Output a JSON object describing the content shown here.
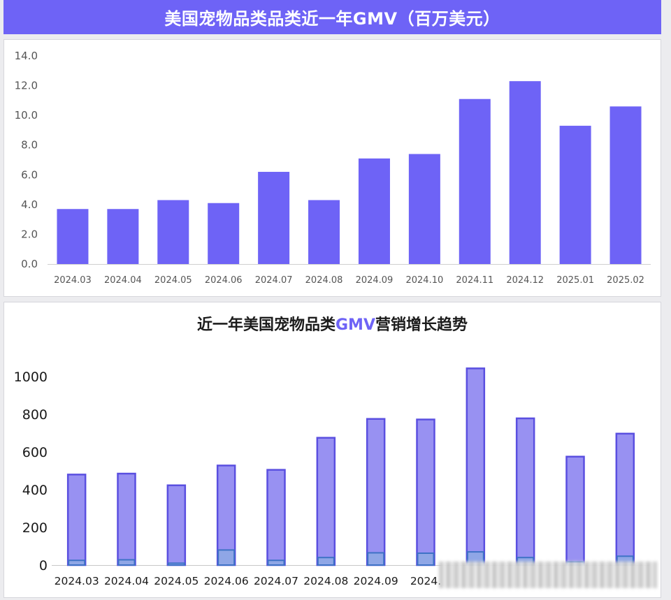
{
  "banner": {
    "title": "美国宠物品类品类近一年GMV（百万美元）"
  },
  "chart2_title": {
    "before": "近一年美国宠物品类",
    "highlight": "GMV",
    "after": "营销增长趋势"
  },
  "colors": {
    "bar1": "#6e63f6",
    "bar2_fill": "#9891f2",
    "bar2_stroke": "#5a4fe0",
    "bar2_inner_fill": "#8fa6e6",
    "bar2_inner_stroke": "#3e72c6"
  },
  "chart_data": [
    {
      "type": "bar",
      "title": "美国宠物品类品类近一年GMV（百万美元）",
      "categories": [
        "2024.03",
        "2024.04",
        "2024.05",
        "2024.06",
        "2024.07",
        "2024.08",
        "2024.09",
        "2024.10",
        "2024.11",
        "2024.12",
        "2025.01",
        "2025.02"
      ],
      "values": [
        3.7,
        3.7,
        4.3,
        4.1,
        6.2,
        4.3,
        7.1,
        7.4,
        11.1,
        12.3,
        9.3,
        10.6
      ],
      "yticks": [
        "0.0",
        "2.0",
        "4.0",
        "6.0",
        "8.0",
        "10.0",
        "12.0",
        "14.0"
      ],
      "ylim": [
        0,
        14
      ],
      "grid": false
    },
    {
      "type": "bar",
      "title": "近一年美国宠物品类GMV营销增长趋势",
      "categories": [
        "2024.03",
        "2024.04",
        "2024.05",
        "2024.06",
        "2024.07",
        "2024.08",
        "2024.09",
        "2024.",
        "",
        "",
        "",
        ""
      ],
      "series": [
        {
          "values": [
            480,
            485,
            423,
            528,
            505,
            675,
            775,
            772,
            1043,
            778,
            575,
            697
          ]
        },
        {
          "values": [
            25,
            28,
            10,
            80,
            25,
            40,
            65,
            63,
            70,
            40,
            17,
            47
          ]
        }
      ],
      "yticks": [
        "0",
        "200",
        "400",
        "600",
        "800",
        "1000"
      ],
      "ylim": [
        0,
        1000
      ],
      "grid": false
    }
  ]
}
